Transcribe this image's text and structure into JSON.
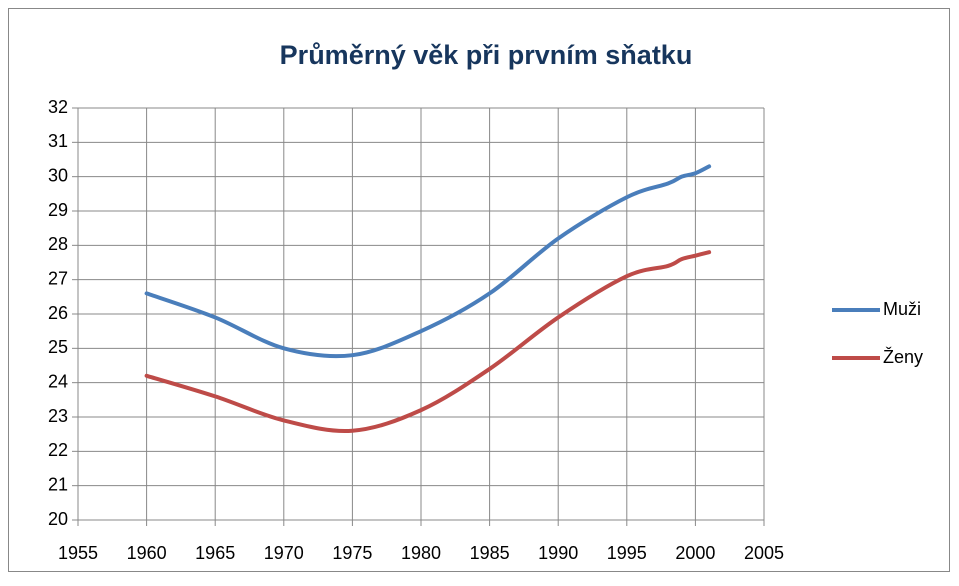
{
  "chart_data": {
    "type": "line",
    "title": "Průměrný věk při prvním sňatku",
    "x": [
      1960,
      1965,
      1970,
      1975,
      1980,
      1985,
      1990,
      1995,
      1998,
      1999,
      2000,
      2001
    ],
    "series": [
      {
        "name": "Muži",
        "color": "#4a7ebb",
        "values": [
          26.6,
          25.9,
          25.0,
          24.8,
          25.5,
          26.6,
          28.2,
          29.4,
          29.8,
          30.0,
          30.1,
          30.3
        ]
      },
      {
        "name": "Ženy",
        "color": "#be4b48",
        "values": [
          24.2,
          23.6,
          22.9,
          22.6,
          23.2,
          24.4,
          25.9,
          27.1,
          27.4,
          27.6,
          27.7,
          27.8
        ]
      }
    ],
    "xlim": [
      1955,
      2005
    ],
    "xticks": [
      1955,
      1960,
      1965,
      1970,
      1975,
      1980,
      1985,
      1990,
      1995,
      2000,
      2005
    ],
    "ylim": [
      20,
      32
    ],
    "yticks": [
      20,
      21,
      22,
      23,
      24,
      25,
      26,
      27,
      28,
      29,
      30,
      31,
      32
    ],
    "grid": true,
    "legend": "right"
  }
}
